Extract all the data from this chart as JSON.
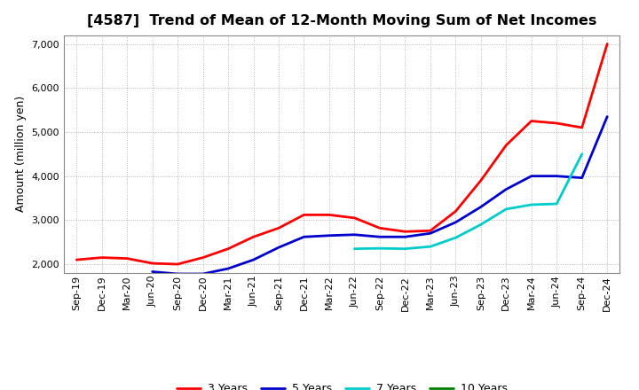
{
  "title": "[4587]  Trend of Mean of 12-Month Moving Sum of Net Incomes",
  "ylabel": "Amount (million yen)",
  "ylim": [
    1800,
    7200
  ],
  "yticks": [
    2000,
    3000,
    4000,
    5000,
    6000,
    7000
  ],
  "x_labels": [
    "Sep-19",
    "Dec-19",
    "Mar-20",
    "Jun-20",
    "Sep-20",
    "Dec-20",
    "Mar-21",
    "Jun-21",
    "Sep-21",
    "Dec-21",
    "Mar-22",
    "Jun-22",
    "Sep-22",
    "Dec-22",
    "Mar-23",
    "Jun-23",
    "Sep-23",
    "Dec-23",
    "Mar-24",
    "Jun-24",
    "Sep-24",
    "Dec-24"
  ],
  "series": {
    "3 Years": {
      "color": "#ff0000",
      "values": [
        2100,
        2150,
        2130,
        2020,
        2000,
        2150,
        2350,
        2620,
        2820,
        3120,
        3120,
        3050,
        2820,
        2740,
        2760,
        3200,
        3900,
        4700,
        5250,
        5200,
        5100,
        7000
      ]
    },
    "5 Years": {
      "color": "#0000cc",
      "values": [
        null,
        null,
        null,
        1830,
        1780,
        1780,
        1900,
        2100,
        2380,
        2620,
        2650,
        2670,
        2620,
        2620,
        2700,
        2950,
        3300,
        3700,
        4000,
        4000,
        3960,
        5350
      ]
    },
    "7 Years": {
      "color": "#00cccc",
      "values": [
        null,
        null,
        null,
        null,
        null,
        null,
        null,
        null,
        null,
        null,
        null,
        2350,
        2360,
        2350,
        2400,
        2600,
        2900,
        3250,
        3350,
        3370,
        4500,
        null
      ]
    },
    "10 Years": {
      "color": "#008000",
      "values": [
        null,
        null,
        null,
        null,
        null,
        null,
        null,
        null,
        null,
        null,
        null,
        null,
        null,
        null,
        null,
        null,
        null,
        null,
        null,
        null,
        null,
        null
      ]
    }
  },
  "background_color": "#ffffff",
  "grid_color": "#aaaaaa",
  "title_fontsize": 11.5,
  "axis_label_fontsize": 9,
  "tick_fontsize": 8,
  "legend_fontsize": 9,
  "linewidth": 2.0
}
